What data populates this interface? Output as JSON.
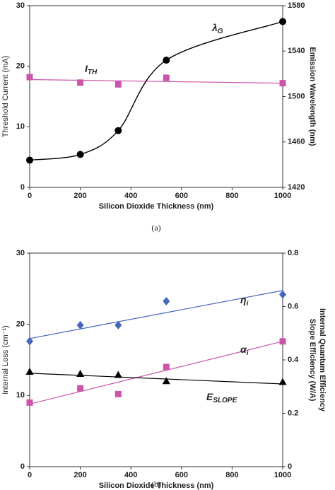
{
  "chart_data": [
    {
      "type": "scatter",
      "caption": "(a)",
      "xlabel": "Silicon Dioxide Thickness (nm)",
      "ylabel": "Threshold Current (mA)",
      "ylabel_color": "#cc44aa",
      "y2label": [
        "Emission Wavelength (nm)"
      ],
      "y2label_colors": [
        "#222222"
      ],
      "xlim": [
        0,
        1000
      ],
      "xticks": [
        0,
        200,
        400,
        600,
        800,
        1000
      ],
      "ylim": [
        0,
        30
      ],
      "yticks": [
        0,
        10,
        20,
        30
      ],
      "y2lim": [
        1420,
        1580
      ],
      "y2ticks": [
        1420,
        1460,
        1500,
        1540,
        1580
      ],
      "series": [
        {
          "label": {
            "text": "I",
            "sub": "TH"
          },
          "color": "#cc55aa",
          "marker": "square",
          "x": [
            0,
            200,
            350,
            540,
            1000
          ],
          "values": [
            18.2,
            17.3,
            17.0,
            18.1,
            17.2
          ],
          "trend": {
            "x": [
              0,
              1000
            ],
            "values": [
              17.8,
              17.2
            ]
          }
        },
        {
          "label": {
            "text": "λ",
            "sub": "G"
          },
          "color": "#000000",
          "marker": "circle",
          "axis": "y2",
          "curve": "spline",
          "x": [
            0,
            200,
            350,
            540,
            1000
          ],
          "values": [
            1444,
            1449,
            1470,
            1532,
            1566
          ]
        }
      ]
    },
    {
      "type": "scatter",
      "caption": "(b)",
      "xlabel": "Silicon Dioxide Thickness (nm)",
      "ylabel": "Internal Loss (cm⁻¹)",
      "ylabel_color": "#cc44aa",
      "y2label": [
        "Slope Efficiency (W/A)",
        "Internal Quantum Efficiency"
      ],
      "y2label_colors": [
        "#222222",
        "#3355aa"
      ],
      "xlim": [
        0,
        1000
      ],
      "xticks": [
        0,
        200,
        400,
        600,
        800,
        1000
      ],
      "ylim": [
        0,
        30
      ],
      "yticks": [
        0,
        10,
        20,
        30
      ],
      "y2lim": [
        0,
        0.8
      ],
      "y2ticks": [
        0,
        0.2,
        0.4,
        0.6,
        0.8
      ],
      "series": [
        {
          "label": {
            "text": "η",
            "sub": "i"
          },
          "color": "#4466bb",
          "marker": "diamond",
          "axis": "y2",
          "x": [
            0,
            200,
            350,
            540,
            1000
          ],
          "values": [
            0.47,
            0.53,
            0.53,
            0.62,
            0.645
          ],
          "trend": {
            "x": [
              0,
              1000
            ],
            "values": [
              0.48,
              0.66
            ]
          }
        },
        {
          "label": {
            "text": "α",
            "sub": "i"
          },
          "color": "#cc55aa",
          "marker": "square",
          "x": [
            0,
            200,
            350,
            540,
            1000
          ],
          "values": [
            9.0,
            11.0,
            10.2,
            14.0,
            17.6
          ],
          "trend": {
            "x": [
              0,
              1000
            ],
            "values": [
              8.8,
              17.6
            ]
          }
        },
        {
          "label": {
            "text": "E",
            "sub": "SLOPE"
          },
          "color": "#000000",
          "marker": "triangle",
          "axis": "y2",
          "x": [
            0,
            200,
            350,
            540,
            1000
          ],
          "values": [
            0.355,
            0.347,
            0.343,
            0.32,
            0.317
          ],
          "trend": {
            "x": [
              0,
              1000
            ],
            "values": [
              0.35,
              0.31
            ]
          }
        }
      ]
    }
  ]
}
